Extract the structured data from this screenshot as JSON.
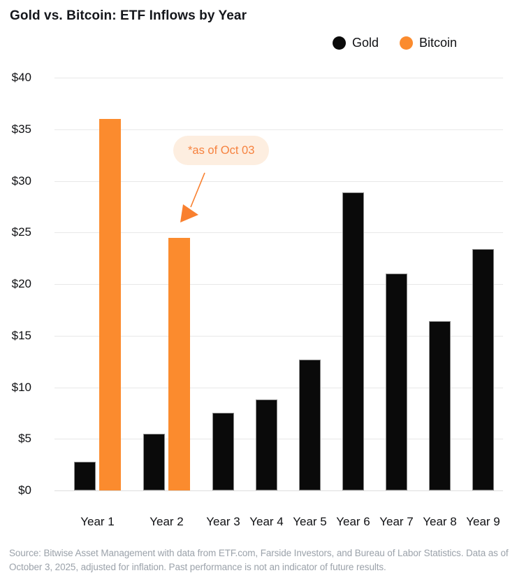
{
  "chart_data": {
    "type": "bar",
    "title": "Gold vs. Bitcoin: ETF Inflows by Year",
    "categories": [
      "Year 1",
      "Year 2",
      "Year 3",
      "Year 4",
      "Year 5",
      "Year 6",
      "Year 7",
      "Year 8",
      "Year 9"
    ],
    "series": [
      {
        "name": "Gold",
        "color": "#0a0a0a",
        "values": [
          2.8,
          5.5,
          7.5,
          8.8,
          12.7,
          28.9,
          21.0,
          16.4,
          23.4
        ]
      },
      {
        "name": "Bitcoin",
        "color": "#FB8B2E",
        "values": [
          36.0,
          24.5,
          null,
          null,
          null,
          null,
          null,
          null,
          null
        ]
      }
    ],
    "xlabel": "",
    "ylabel": "",
    "ylim": [
      0,
      40
    ],
    "ytick_values": [
      0,
      5,
      10,
      15,
      20,
      25,
      30,
      35,
      40
    ],
    "ytick_labels": [
      "$0",
      "$5",
      "$10",
      "$15",
      "$20",
      "$25",
      "$30",
      "$35",
      "$40"
    ],
    "grid": true,
    "legend_position": "top-right",
    "annotation": {
      "text": "*as of Oct 03",
      "target": "Year 2 Bitcoin bar",
      "text_color": "#F6823F",
      "bg_color": "#FDEEE0",
      "arrow_color": "#F9802F"
    }
  },
  "footer": {
    "text": "Source: Bitwise Asset Management with data from ETF.com, Farside Investors, and Bureau of Labor Statistics. Data as of October 3, 2025, adjusted for inflation. Past performance is not an indicator of future results."
  }
}
